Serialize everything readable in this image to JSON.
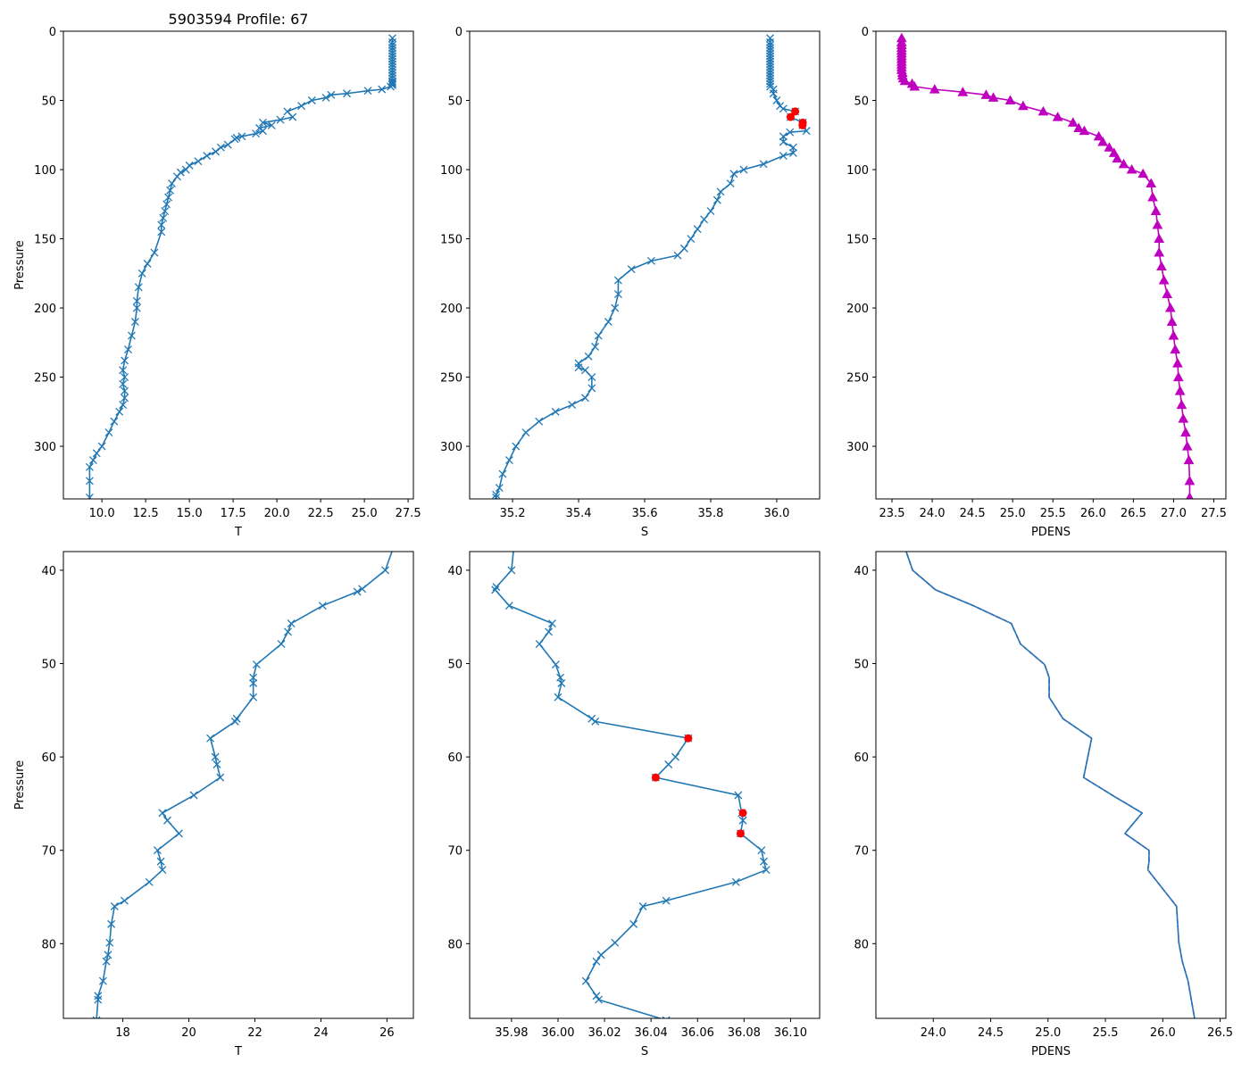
{
  "chart_data": [
    {
      "id": "top-t",
      "type": "line",
      "title": "5903594 Profile: 67",
      "xlabel": "T",
      "ylabel": "Pressure",
      "xlim": [
        7.8,
        27.8
      ],
      "ylim": [
        338,
        0
      ],
      "xticks": [
        10.0,
        12.5,
        15.0,
        17.5,
        20.0,
        22.5,
        25.0,
        27.5
      ],
      "xtick_labels": [
        "10.0",
        "12.5",
        "15.0",
        "17.5",
        "20.0",
        "22.5",
        "25.0",
        "27.5"
      ],
      "yticks": [
        0,
        50,
        100,
        150,
        200,
        250,
        300
      ],
      "ytick_labels": [
        "0",
        "50",
        "100",
        "150",
        "200",
        "250",
        "300"
      ],
      "series": [
        {
          "name": "T",
          "color": "#1f77b4",
          "marker": "x",
          "x": [
            26.6,
            26.6,
            26.6,
            26.6,
            26.6,
            26.6,
            26.6,
            26.6,
            26.6,
            26.6,
            26.6,
            26.6,
            26.6,
            26.6,
            26.6,
            26.6,
            26.6,
            26.6,
            26.6,
            26.5,
            26.0,
            25.2,
            24.0,
            23.1,
            22.8,
            22.0,
            21.4,
            20.6,
            20.9,
            20.2,
            19.2,
            19.7,
            19.0,
            19.2,
            18.8,
            18.0,
            17.7,
            17.6,
            17.2,
            16.8,
            16.5,
            16.0,
            15.5,
            15.0,
            14.8,
            14.5,
            14.3,
            14.0,
            13.9,
            13.8,
            13.7,
            13.6,
            13.5,
            13.4,
            13.4,
            13.0,
            12.6,
            12.3,
            12.1,
            12.0,
            12.0,
            11.9,
            11.7,
            11.5,
            11.3,
            11.2,
            11.3,
            11.2,
            11.3,
            11.3,
            11.2,
            11.0,
            10.7,
            10.4,
            10.0,
            9.7,
            9.5,
            9.3,
            9.3,
            9.3
          ],
          "y": [
            5,
            8,
            10,
            12,
            14,
            16,
            18,
            20,
            22,
            24,
            26,
            28,
            30,
            32,
            34,
            36,
            37,
            38,
            39,
            40,
            42,
            43,
            45,
            46,
            48,
            50,
            54,
            58,
            62,
            64,
            66,
            68,
            70,
            72,
            74,
            76,
            77,
            78,
            82,
            84,
            87,
            90,
            94,
            97,
            100,
            102,
            105,
            110,
            115,
            120,
            125,
            130,
            135,
            140,
            145,
            160,
            168,
            175,
            185,
            195,
            200,
            210,
            220,
            230,
            238,
            245,
            250,
            255,
            260,
            265,
            270,
            275,
            282,
            290,
            300,
            305,
            310,
            315,
            325,
            337
          ]
        }
      ]
    },
    {
      "id": "top-s",
      "type": "line",
      "title": "",
      "xlabel": "S",
      "ylabel": "",
      "xlim": [
        35.07,
        36.13
      ],
      "ylim": [
        338,
        0
      ],
      "xticks": [
        35.2,
        35.4,
        35.6,
        35.8,
        36.0
      ],
      "xtick_labels": [
        "35.2",
        "35.4",
        "35.6",
        "35.8",
        "36.0"
      ],
      "yticks": [
        0,
        50,
        100,
        150,
        200,
        250,
        300
      ],
      "ytick_labels": [
        "0",
        "50",
        "100",
        "150",
        "200",
        "250",
        "300"
      ],
      "series": [
        {
          "name": "S",
          "color": "#1f77b4",
          "marker": "x",
          "x": [
            35.98,
            35.98,
            35.98,
            35.98,
            35.98,
            35.98,
            35.98,
            35.98,
            35.98,
            35.98,
            35.98,
            35.98,
            35.98,
            35.98,
            35.98,
            35.98,
            35.98,
            35.98,
            35.99,
            35.99,
            36.0,
            36.01,
            36.02,
            36.056,
            36.042,
            36.079,
            36.078,
            36.09,
            36.04,
            36.02,
            36.02,
            36.05,
            36.05,
            36.02,
            35.96,
            35.9,
            35.87,
            35.86,
            35.83,
            35.82,
            35.8,
            35.78,
            35.76,
            35.74,
            35.72,
            35.7,
            35.62,
            35.56,
            35.52,
            35.52,
            35.51,
            35.49,
            35.46,
            35.45,
            35.43,
            35.4,
            35.4,
            35.42,
            35.44,
            35.44,
            35.42,
            35.38,
            35.33,
            35.28,
            35.24,
            35.21,
            35.19,
            35.17,
            35.16,
            35.15,
            35.15
          ],
          "y": [
            5,
            8,
            10,
            12,
            14,
            16,
            18,
            20,
            22,
            24,
            26,
            28,
            30,
            32,
            34,
            36,
            38,
            40,
            42,
            45,
            50,
            54,
            56,
            58,
            62,
            66,
            68,
            72,
            73,
            76,
            80,
            84,
            88,
            90,
            96,
            100,
            103,
            110,
            116,
            122,
            130,
            136,
            143,
            150,
            157,
            162,
            166,
            172,
            180,
            190,
            200,
            210,
            220,
            228,
            235,
            240,
            243,
            245,
            250,
            258,
            265,
            270,
            275,
            282,
            290,
            300,
            310,
            320,
            330,
            335,
            337
          ]
        },
        {
          "name": "flagged",
          "color": "#ff0000",
          "marker": "o",
          "x": [
            36.056,
            36.042,
            36.079,
            36.078
          ],
          "y": [
            58,
            62,
            66,
            68
          ]
        }
      ]
    },
    {
      "id": "top-pdens",
      "type": "line",
      "title": "",
      "xlabel": "PDENS",
      "ylabel": "",
      "xlim": [
        23.3,
        27.65
      ],
      "ylim": [
        338,
        0
      ],
      "xticks": [
        23.5,
        24.0,
        24.5,
        25.0,
        25.5,
        26.0,
        26.5,
        27.0,
        27.5
      ],
      "xtick_labels": [
        "23.5",
        "24.0",
        "24.5",
        "25.0",
        "25.5",
        "26.0",
        "26.5",
        "27.0",
        "27.5"
      ],
      "yticks": [
        0,
        50,
        100,
        150,
        200,
        250,
        300
      ],
      "ytick_labels": [
        "0",
        "50",
        "100",
        "150",
        "200",
        "250",
        "300"
      ],
      "series": [
        {
          "name": "PDENS",
          "color": "#bf00bf",
          "marker": "^",
          "x": [
            23.62,
            23.62,
            23.62,
            23.62,
            23.62,
            23.62,
            23.62,
            23.62,
            23.62,
            23.62,
            23.62,
            23.62,
            23.63,
            23.63,
            23.64,
            23.66,
            23.75,
            23.78,
            24.03,
            24.38,
            24.67,
            24.76,
            24.97,
            25.13,
            25.38,
            25.56,
            25.75,
            25.82,
            25.89,
            26.07,
            26.12,
            26.2,
            26.26,
            26.3,
            26.38,
            26.48,
            26.62,
            26.72,
            26.74,
            26.78,
            26.8,
            26.82,
            26.82,
            26.85,
            26.88,
            26.92,
            26.96,
            26.98,
            27.0,
            27.02,
            27.05,
            27.06,
            27.08,
            27.1,
            27.12,
            27.15,
            27.17,
            27.19,
            27.2,
            27.2
          ],
          "y": [
            5,
            8,
            10,
            12,
            14,
            16,
            18,
            20,
            22,
            24,
            26,
            28,
            30,
            32,
            34,
            36,
            38,
            40,
            42,
            44,
            46,
            48,
            50,
            54,
            58,
            62,
            66,
            70,
            72,
            76,
            80,
            84,
            88,
            92,
            96,
            100,
            103,
            110,
            120,
            130,
            140,
            150,
            160,
            170,
            180,
            190,
            200,
            210,
            220,
            230,
            240,
            250,
            260,
            270,
            280,
            290,
            300,
            310,
            325,
            337
          ]
        }
      ]
    },
    {
      "id": "bottom-t",
      "type": "line",
      "title": "",
      "xlabel": "T",
      "ylabel": "Pressure",
      "xlim": [
        16.2,
        26.8
      ],
      "ylim": [
        88,
        38
      ],
      "xticks": [
        18,
        20,
        22,
        24,
        26
      ],
      "xtick_labels": [
        "18",
        "20",
        "22",
        "24",
        "26"
      ],
      "yticks": [
        40,
        50,
        60,
        70,
        80
      ],
      "ytick_labels": [
        "40",
        "50",
        "60",
        "70",
        "80"
      ],
      "series": [
        {
          "name": "T",
          "color": "#1f77b4",
          "marker": "x",
          "x": [
            26.2,
            25.95,
            25.25,
            25.1,
            24.05,
            23.1,
            23.0,
            22.8,
            22.05,
            21.95,
            21.95,
            21.95,
            21.45,
            21.4,
            20.65,
            20.8,
            20.85,
            20.95,
            20.15,
            19.2,
            19.35,
            19.7,
            19.05,
            19.15,
            19.2,
            18.8,
            18.05,
            17.75,
            17.65,
            17.6,
            17.55,
            17.5,
            17.4,
            17.25,
            17.25,
            17.2
          ],
          "y": [
            37.5,
            40,
            42,
            42.3,
            43.8,
            45.7,
            46.6,
            47.9,
            50.1,
            51.5,
            52.1,
            53.6,
            55.9,
            56.2,
            58.0,
            60.0,
            60.8,
            62.2,
            64.1,
            66.0,
            66.8,
            68.2,
            70.0,
            71.2,
            72.1,
            73.4,
            75.4,
            76.0,
            77.9,
            79.9,
            81.2,
            81.9,
            84.0,
            85.6,
            86.0,
            88.2
          ]
        }
      ]
    },
    {
      "id": "bottom-s",
      "type": "line",
      "title": "",
      "xlabel": "S",
      "ylabel": "",
      "xlim": [
        35.962,
        36.1125
      ],
      "ylim": [
        88,
        38
      ],
      "xticks": [
        35.98,
        36.0,
        36.02,
        36.04,
        36.06,
        36.08,
        36.1
      ],
      "xtick_labels": [
        "35.98",
        "36.00",
        "36.02",
        "36.04",
        "36.06",
        "36.08",
        "36.10"
      ],
      "yticks": [
        40,
        50,
        60,
        70,
        80
      ],
      "ytick_labels": [
        "40",
        "50",
        "60",
        "70",
        "80"
      ],
      "series": [
        {
          "name": "S",
          "color": "#1f77b4",
          "marker": "x",
          "x": [
            35.981,
            35.98,
            35.9735,
            35.973,
            35.979,
            35.9975,
            35.996,
            35.992,
            35.999,
            36.001,
            36.0015,
            36.0,
            36.0145,
            36.016,
            36.056,
            36.0505,
            36.0475,
            36.042,
            36.0775,
            36.079,
            36.0795,
            36.0785,
            36.0875,
            36.0885,
            36.0895,
            36.0765,
            36.0465,
            36.0365,
            36.0325,
            36.0245,
            36.0185,
            36.0165,
            36.012,
            36.0165,
            36.0175,
            36.0465
          ],
          "y": [
            37.5,
            40,
            41.8,
            42.1,
            43.8,
            45.7,
            46.6,
            47.9,
            50.1,
            51.5,
            52.1,
            53.6,
            55.9,
            56.2,
            58.0,
            60.0,
            60.8,
            62.2,
            64.1,
            66.0,
            66.8,
            68.2,
            70.0,
            71.2,
            72.1,
            73.4,
            75.4,
            76.0,
            77.9,
            79.9,
            81.2,
            81.9,
            84.0,
            85.6,
            86.0,
            88.2
          ]
        },
        {
          "name": "flagged",
          "color": "#ff0000",
          "marker": "o",
          "x": [
            36.056,
            36.042,
            36.0795,
            36.0785
          ],
          "y": [
            58.0,
            62.2,
            66.0,
            68.2
          ]
        }
      ]
    },
    {
      "id": "bottom-pdens",
      "type": "line",
      "title": "",
      "xlabel": "PDENS",
      "ylabel": "",
      "xlim": [
        23.5,
        26.55
      ],
      "ylim": [
        88,
        38
      ],
      "xticks": [
        24.0,
        24.5,
        25.0,
        25.5,
        26.0,
        26.5
      ],
      "xtick_labels": [
        "24.0",
        "24.5",
        "25.0",
        "25.5",
        "26.0",
        "26.5"
      ],
      "yticks": [
        40,
        50,
        60,
        70,
        80
      ],
      "ytick_labels": [
        "40",
        "50",
        "60",
        "70",
        "80"
      ],
      "series": [
        {
          "name": "PDENS",
          "color": "#bf00bf",
          "marker": "none",
          "x": [
            23.75,
            23.82,
            24.02,
            24.35,
            24.68,
            24.76,
            24.97,
            25.01,
            25.01,
            25.13,
            25.38,
            25.31,
            25.56,
            25.82,
            25.67,
            25.88,
            25.88,
            25.87,
            26.12,
            26.14,
            26.17,
            26.22,
            26.28
          ],
          "y": [
            37.5,
            40,
            42.1,
            43.8,
            45.7,
            47.9,
            50.1,
            51.5,
            53.6,
            55.9,
            58.0,
            62.2,
            64.1,
            66.0,
            68.2,
            70.0,
            71.2,
            72.1,
            76.0,
            79.9,
            81.9,
            84.0,
            88.2
          ]
        },
        {
          "name": "PDENS-line",
          "color": "#1f77b4",
          "marker": "none",
          "x": [
            23.75,
            23.82,
            24.02,
            24.35,
            24.68,
            24.76,
            24.97,
            25.01,
            25.01,
            25.13,
            25.38,
            25.31,
            25.56,
            25.82,
            25.67,
            25.88,
            25.88,
            25.87,
            26.12,
            26.14,
            26.17,
            26.22,
            26.28
          ],
          "y": [
            37.5,
            40,
            42.1,
            43.8,
            45.7,
            47.9,
            50.1,
            51.5,
            53.6,
            55.9,
            58.0,
            62.2,
            64.1,
            66.0,
            68.2,
            70.0,
            71.2,
            72.1,
            76.0,
            79.9,
            81.9,
            84.0,
            88.2
          ]
        }
      ]
    }
  ]
}
